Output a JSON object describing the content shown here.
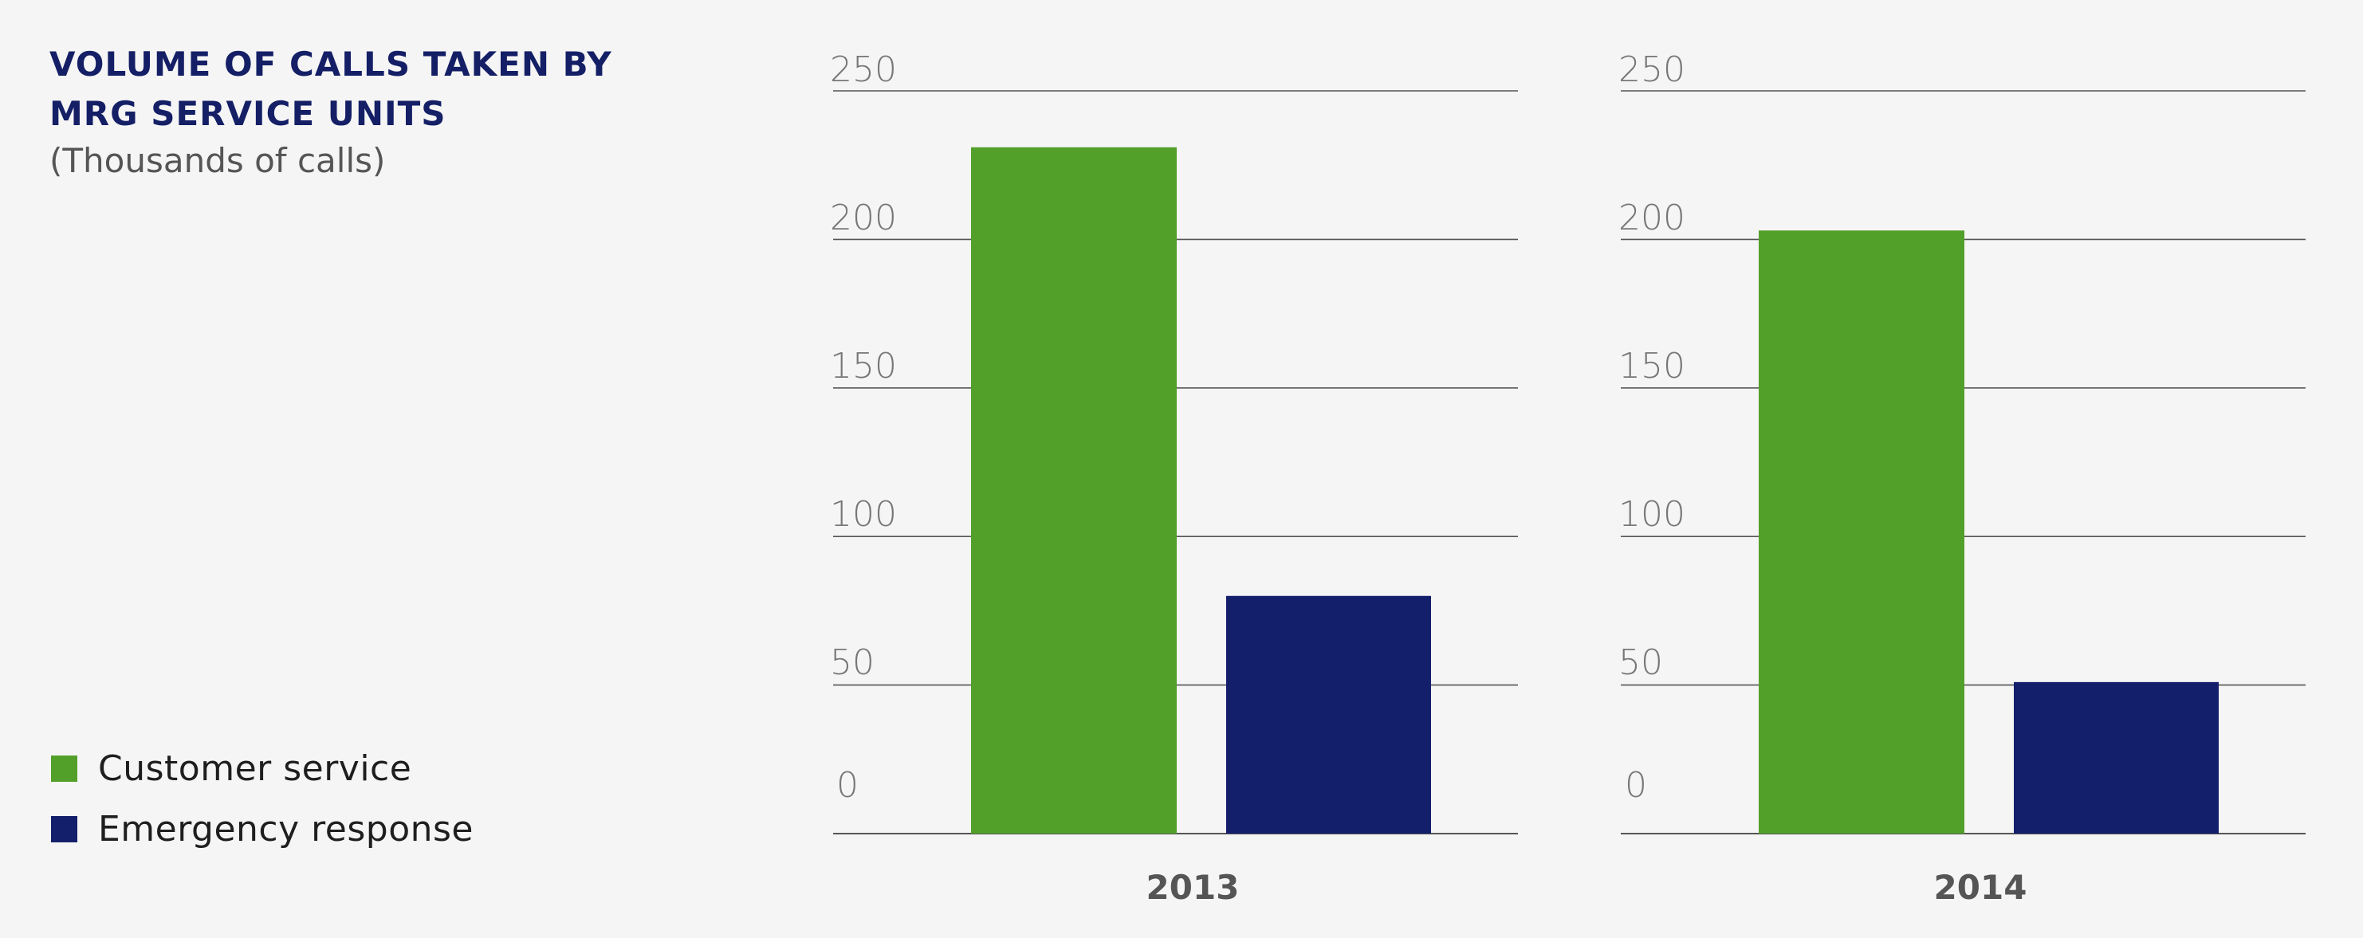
{
  "header": {
    "title_line1": "VOLUME OF CALLS TAKEN BY",
    "title_line2": "MRG SERVICE UNITS",
    "subtitle": "(Thousands of calls)"
  },
  "legend": {
    "items": [
      {
        "label": "Customer service",
        "color": "#52a02a"
      },
      {
        "label": "Emergency response",
        "color": "#141f6b"
      }
    ]
  },
  "colors": {
    "gridline": "#555555",
    "tick_label": "#777777",
    "year_label": "#555555",
    "title": "#141f66"
  },
  "chart_data": [
    {
      "type": "bar",
      "categories": [
        "2013"
      ],
      "series": [
        {
          "name": "Customer service",
          "values": [
            231
          ]
        },
        {
          "name": "Emergency response",
          "values": [
            80
          ]
        }
      ],
      "yticks": [
        0,
        50,
        100,
        150,
        200,
        250
      ],
      "ylim": [
        0,
        250
      ],
      "grid": true,
      "legend_placement": "left"
    },
    {
      "type": "bar",
      "categories": [
        "2014"
      ],
      "series": [
        {
          "name": "Customer service",
          "values": [
            203
          ]
        },
        {
          "name": "Emergency response",
          "values": [
            51
          ]
        }
      ],
      "yticks": [
        0,
        50,
        100,
        150,
        200,
        250
      ],
      "ylim": [
        0,
        250
      ],
      "grid": true,
      "legend_placement": "left"
    }
  ]
}
